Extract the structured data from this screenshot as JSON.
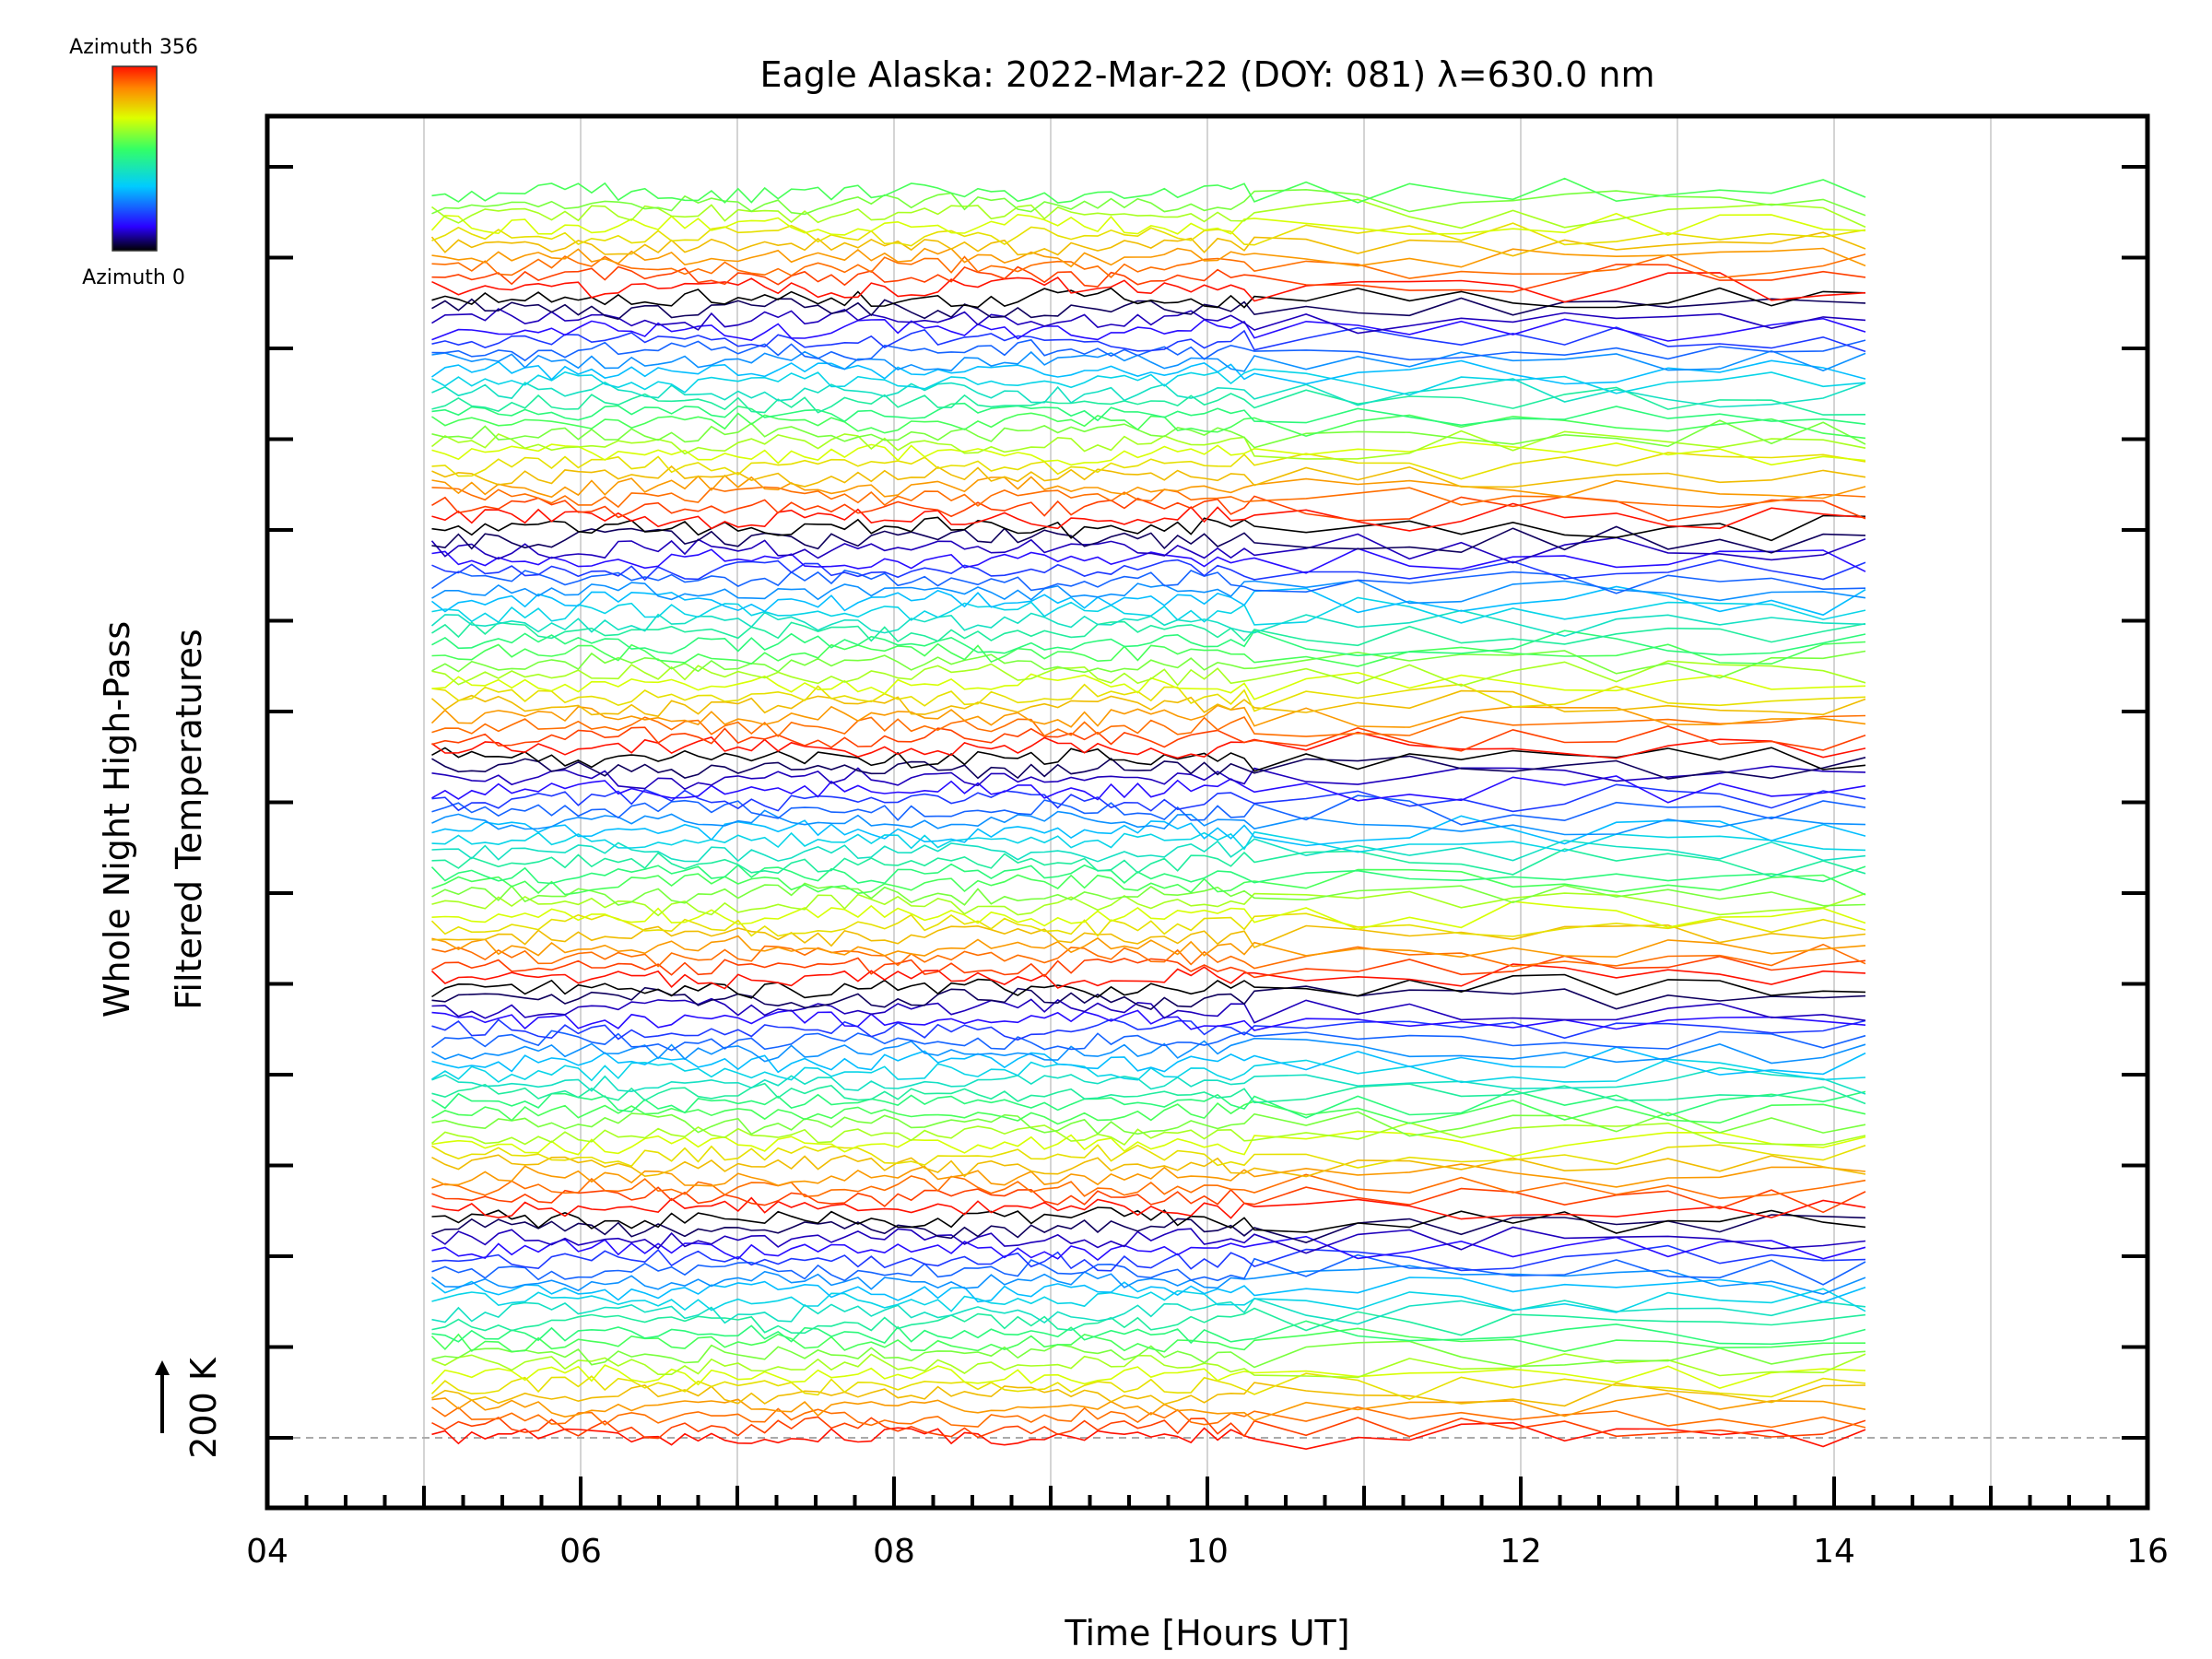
{
  "chart_data": {
    "type": "line",
    "title": "Eagle Alaska: 2022-Mar-22 (DOY: 081) λ=630.0 nm",
    "xlabel": "Time [Hours UT]",
    "ylabel_line1": "Whole Night High-Pass",
    "ylabel_line2": "Filtered Temperatures",
    "scale_marker": "200 K",
    "xlim": [
      4,
      16
    ],
    "x_tick_labels": [
      "04",
      "06",
      "08",
      "10",
      "12",
      "14",
      "16"
    ],
    "x_tick_values": [
      4,
      6,
      8,
      10,
      12,
      14,
      16
    ],
    "grid": "vertical lines every hour",
    "time_range_hours": [
      5.05,
      14.2
    ],
    "azimuth_range_deg": [
      0,
      356
    ],
    "colorbar": {
      "top_label": "Azimuth 356",
      "bottom_label": "Azimuth 0",
      "position": "top-left"
    },
    "trace_offset_step_K": 200,
    "trace_count": 120
  }
}
